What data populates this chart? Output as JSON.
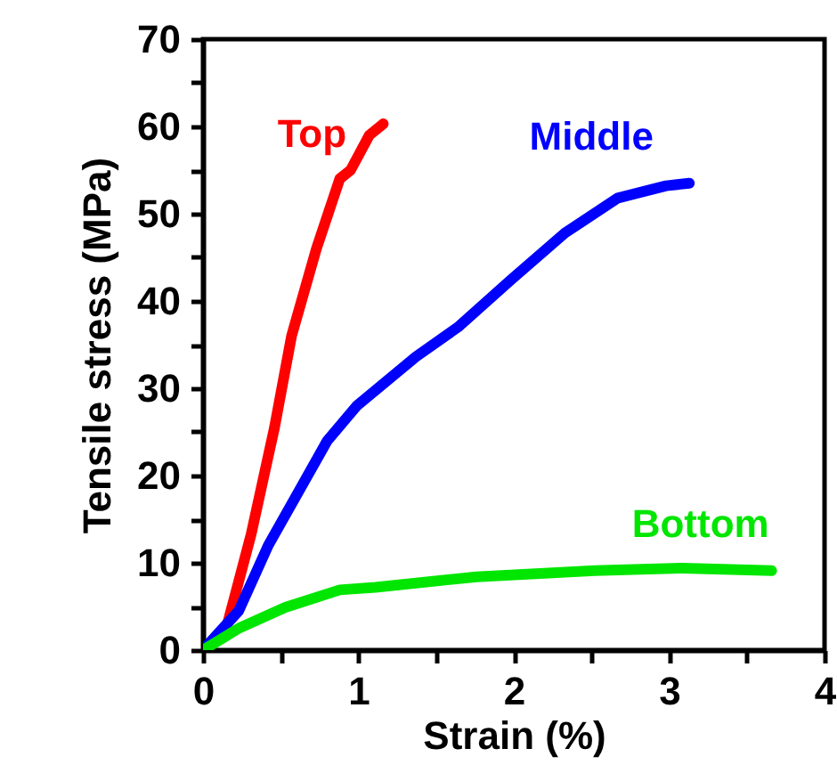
{
  "chart_data": {
    "type": "line",
    "xlabel": "Strain (%)",
    "ylabel": "Tensile stress (MPa)",
    "xlim": [
      0,
      4
    ],
    "ylim": [
      0,
      70
    ],
    "xticks": [
      0,
      {
        "value": 0.5,
        "label": null
      },
      1,
      {
        "value": 1.5,
        "label": null
      },
      2,
      {
        "value": 2.5,
        "label": null
      },
      3,
      {
        "value": 3.5,
        "label": null
      },
      4
    ],
    "yticks": [
      0,
      {
        "value": 5,
        "label": null
      },
      10,
      {
        "value": 15,
        "label": null
      },
      20,
      {
        "value": 25,
        "label": null
      },
      30,
      {
        "value": 35,
        "label": null
      },
      40,
      {
        "value": 45,
        "label": null
      },
      50,
      {
        "value": 55,
        "label": null
      },
      60,
      {
        "value": 65,
        "label": null
      },
      70
    ],
    "grid": false,
    "legend": false,
    "marker": "none",
    "line_style": "solid",
    "series": [
      {
        "name": "Top",
        "color": "#ff0000",
        "x": [
          0,
          0.15,
          0.31,
          0.46,
          0.57,
          0.73,
          0.88,
          0.95,
          1.07,
          1.16
        ],
        "values": [
          0,
          2.5,
          13.3,
          25.5,
          36,
          46,
          54,
          55,
          59,
          60.3
        ]
      },
      {
        "name": "Middle",
        "color": "#0000ff",
        "x": [
          0,
          0.23,
          0.42,
          0.61,
          0.8,
          0.99,
          1.37,
          1.64,
          1.98,
          2.33,
          2.67,
          2.98,
          3.13
        ],
        "values": [
          0,
          4.5,
          12,
          18,
          24,
          28,
          33.6,
          37,
          42.4,
          47.8,
          51.8,
          53.2,
          53.5
        ]
      },
      {
        "name": "Bottom",
        "color": "#00e600",
        "x": [
          0,
          0.23,
          0.53,
          0.88,
          1.11,
          1.76,
          2.52,
          3.09,
          3.66
        ],
        "values": [
          0,
          2.5,
          4.9,
          6.9,
          7.2,
          8.4,
          9.1,
          9.4,
          9.1
        ]
      }
    ]
  }
}
